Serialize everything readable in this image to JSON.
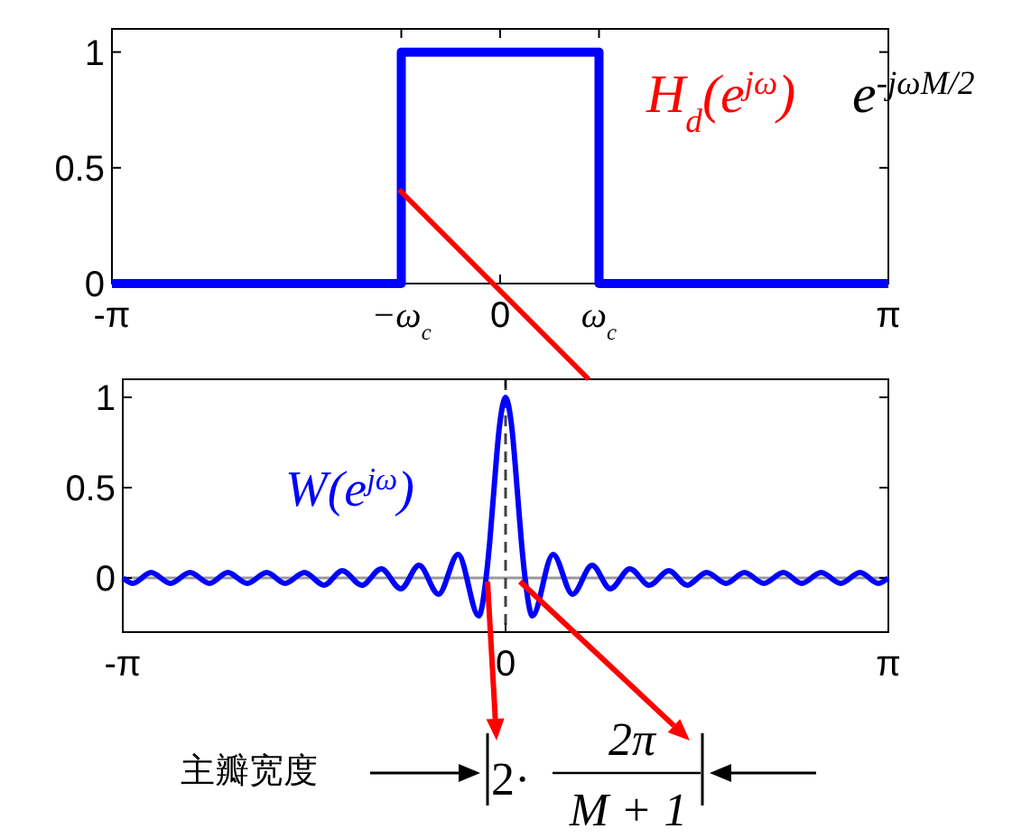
{
  "chart_data": [
    {
      "type": "line",
      "xlim": [
        -3.1416,
        3.1416
      ],
      "ylim": [
        0,
        1.1
      ],
      "xticks": [
        {
          "value": -3.1416,
          "label": "-π"
        },
        {
          "value": -0.8,
          "label": "−ω$_{c}$"
        },
        0,
        {
          "value": 0.8,
          "label": "ω$_{c}$"
        },
        {
          "value": 3.1416,
          "label": "π"
        }
      ],
      "yticks": [
        0,
        0.5,
        1
      ],
      "series": [
        {
          "type": "line",
          "color": "#0000ff",
          "x": [
            -3.1416,
            -0.8,
            -0.8,
            0.8,
            0.8,
            3.1416
          ],
          "values": [
            0,
            0,
            1,
            1,
            0,
            0
          ]
        }
      ],
      "annotations": [
        "H$_{d}$(e$^{jω}$)",
        "e$^{-jωM/2}$"
      ]
    },
    {
      "type": "line",
      "xlim": [
        -3.1416,
        3.1416
      ],
      "ylim": [
        -0.3,
        1.1
      ],
      "xticks": [
        {
          "value": -3.1416,
          "label": "-π"
        },
        0,
        {
          "value": 3.1416,
          "label": "π"
        }
      ],
      "yticks": [
        0,
        0.5,
        1
      ],
      "series": [
        {
          "type": "line",
          "color": "#0000ff",
          "x": [
            -3.14,
            -3.06,
            -2.91,
            -2.75,
            -2.59,
            -2.43,
            -2.28,
            -2.12,
            -1.96,
            -1.81,
            -1.65,
            -1.49,
            -1.34,
            -1.18,
            -1.02,
            -0.86,
            -0.71,
            -0.55,
            -0.39,
            -0.22,
            -0.16,
            -0.13,
            -0.1,
            -0.05,
            0,
            0.05,
            0.1,
            0.13,
            0.16,
            0.22,
            0.39,
            0.55,
            0.71,
            0.86,
            1.02,
            1.18,
            1.34,
            1.49,
            1.65,
            1.81,
            1.96,
            2.12,
            2.28,
            2.43,
            2.59,
            2.75,
            2.91,
            3.06,
            3.14
          ],
          "values": [
            0,
            -0.03,
            0.03,
            -0.03,
            0.03,
            -0.03,
            0.03,
            -0.03,
            0.03,
            -0.03,
            0.03,
            -0.04,
            0.04,
            -0.04,
            0.05,
            -0.06,
            0.07,
            -0.09,
            0.13,
            -0.21,
            0,
            0.2,
            0.45,
            0.84,
            1,
            0.84,
            0.45,
            0.2,
            0,
            -0.21,
            0.13,
            -0.09,
            0.07,
            -0.06,
            0.05,
            -0.04,
            0.04,
            -0.04,
            0.03,
            -0.03,
            0.03,
            -0.03,
            0.03,
            -0.03,
            0.03,
            -0.03,
            0.03,
            -0.03,
            0
          ]
        }
      ],
      "ref_lines": [
        {
          "axis": "y",
          "value": 0,
          "color": "#999999",
          "line_style": "solid"
        },
        {
          "axis": "x",
          "value": 0,
          "color": "#404040",
          "line_style": "dashed"
        }
      ],
      "annotations": [
        "W(e$^{jω}$)",
        "主瓣宽度",
        "2·",
        "2π",
        "M + 1"
      ]
    }
  ]
}
